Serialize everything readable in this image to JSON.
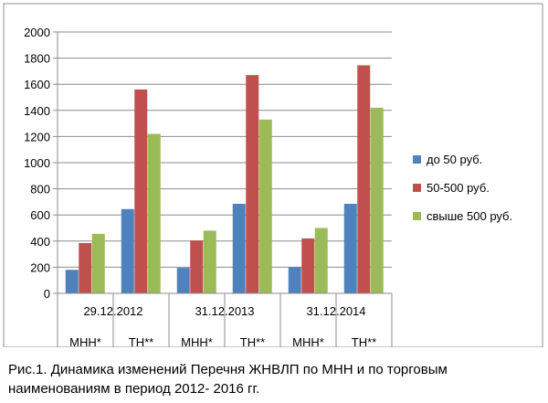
{
  "caption": {
    "line1": "Рис.1. Динамика изменений Перечня  ЖНВЛП по МНН и по торговым",
    "line2": "наименованиям в период 2012- 2016 гг."
  },
  "chart_data": {
    "type": "bar",
    "ylim": [
      0,
      2000
    ],
    "yticks": [
      "0",
      "200",
      "400",
      "600",
      "800",
      "1000",
      "1200",
      "1400",
      "1600",
      "1800",
      "2000"
    ],
    "grid": true,
    "legend_position": "right",
    "date_labels": [
      "29.12.2012",
      "31.12.2013",
      "31.12.2014"
    ],
    "categories": [
      "МНН*",
      "ТН**",
      "МНН*",
      "ТН**",
      "МНН*",
      "ТН**"
    ],
    "series": [
      {
        "name": "до 50 руб.",
        "color": "#4f81bd",
        "values": [
          180,
          645,
          195,
          685,
          200,
          685
        ]
      },
      {
        "name": "50-500 руб.",
        "color": "#c0504d",
        "values": [
          385,
          1560,
          405,
          1670,
          420,
          1745
        ]
      },
      {
        "name": "свыше 500 руб.",
        "color": "#9bbb59",
        "values": [
          455,
          1220,
          480,
          1330,
          500,
          1420
        ]
      }
    ]
  }
}
